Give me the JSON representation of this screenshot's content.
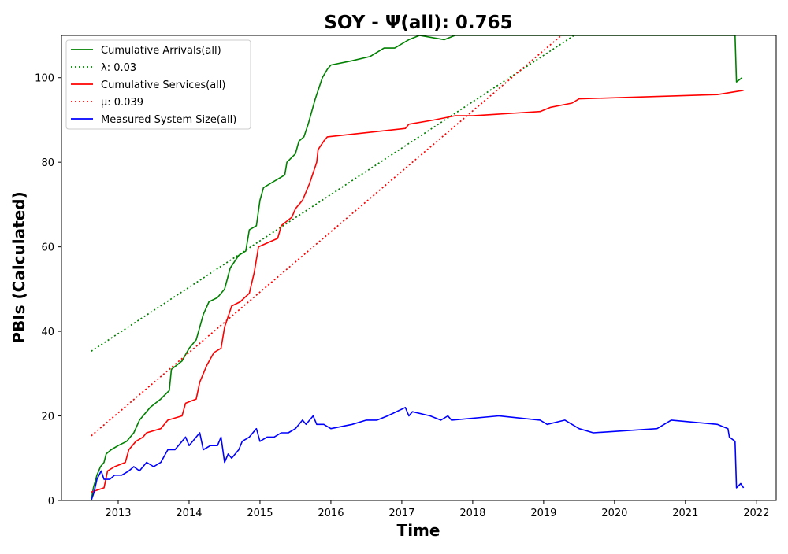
{
  "chart_data": {
    "type": "line",
    "title": "SOY -  Ψ(all): 0.765",
    "xlabel": "Time",
    "ylabel": "PBIs (Calculated)",
    "xlim": [
      2012.2,
      2022.28
    ],
    "ylim": [
      0,
      110
    ],
    "x_ticks": [
      2013,
      2014,
      2015,
      2016,
      2017,
      2018,
      2019,
      2020,
      2021,
      2022
    ],
    "x_tick_labels": [
      "2013",
      "2014",
      "2015",
      "2016",
      "2017",
      "2018",
      "2019",
      "2020",
      "2021",
      "2022"
    ],
    "y_ticks": [
      0,
      20,
      40,
      60,
      80,
      100
    ],
    "y_tick_labels": [
      "0",
      "20",
      "40",
      "60",
      "80",
      "100"
    ],
    "grid": false,
    "legend_position": "top-left",
    "series": [
      {
        "name": "Cumulative Arrivals(all)",
        "color": "#008000",
        "style": "solid",
        "points": [
          [
            2012.62,
            0
          ],
          [
            2012.65,
            3
          ],
          [
            2012.7,
            6
          ],
          [
            2012.75,
            8
          ],
          [
            2012.8,
            9
          ],
          [
            2012.83,
            11
          ],
          [
            2012.9,
            12
          ],
          [
            2013.0,
            13
          ],
          [
            2013.12,
            14
          ],
          [
            2013.22,
            16
          ],
          [
            2013.3,
            19
          ],
          [
            2013.45,
            22
          ],
          [
            2013.6,
            24
          ],
          [
            2013.72,
            26
          ],
          [
            2013.75,
            31
          ],
          [
            2013.9,
            33
          ],
          [
            2014.0,
            36
          ],
          [
            2014.1,
            38
          ],
          [
            2014.2,
            44
          ],
          [
            2014.28,
            47
          ],
          [
            2014.4,
            48
          ],
          [
            2014.5,
            50
          ],
          [
            2014.58,
            55
          ],
          [
            2014.7,
            58
          ],
          [
            2014.8,
            59
          ],
          [
            2014.85,
            64
          ],
          [
            2014.95,
            65
          ],
          [
            2015.0,
            71
          ],
          [
            2015.05,
            74
          ],
          [
            2015.15,
            75
          ],
          [
            2015.25,
            76
          ],
          [
            2015.35,
            77
          ],
          [
            2015.38,
            80
          ],
          [
            2015.5,
            82
          ],
          [
            2015.55,
            85
          ],
          [
            2015.62,
            86
          ],
          [
            2015.68,
            89
          ],
          [
            2015.78,
            95
          ],
          [
            2015.88,
            100
          ],
          [
            2015.95,
            102
          ],
          [
            2016.0,
            103
          ],
          [
            2016.3,
            104
          ],
          [
            2016.55,
            105
          ],
          [
            2016.75,
            107
          ],
          [
            2016.9,
            107
          ],
          [
            2017.1,
            109
          ],
          [
            2017.25,
            110
          ],
          [
            2017.6,
            109
          ],
          [
            2017.75,
            110
          ],
          [
            2021.7,
            110
          ],
          [
            2021.72,
            99
          ],
          [
            2021.8,
            100
          ]
        ]
      },
      {
        "name": "λ: 0.03",
        "color": "#008000",
        "style": "dotted",
        "points": [
          [
            2012.62,
            35.3
          ],
          [
            2019.43,
            110
          ]
        ]
      },
      {
        "name": "Cumulative Services(all)",
        "color": "#ff0000",
        "style": "solid",
        "points": [
          [
            2012.62,
            2
          ],
          [
            2012.8,
            3
          ],
          [
            2012.85,
            7
          ],
          [
            2012.95,
            8
          ],
          [
            2013.1,
            9
          ],
          [
            2013.15,
            12
          ],
          [
            2013.25,
            14
          ],
          [
            2013.35,
            15
          ],
          [
            2013.4,
            16
          ],
          [
            2013.6,
            17
          ],
          [
            2013.7,
            19
          ],
          [
            2013.9,
            20
          ],
          [
            2013.95,
            23
          ],
          [
            2014.1,
            24
          ],
          [
            2014.15,
            28
          ],
          [
            2014.25,
            32
          ],
          [
            2014.35,
            35
          ],
          [
            2014.45,
            36
          ],
          [
            2014.5,
            41
          ],
          [
            2014.6,
            46
          ],
          [
            2014.72,
            47
          ],
          [
            2014.85,
            49
          ],
          [
            2014.92,
            54
          ],
          [
            2014.98,
            60
          ],
          [
            2015.25,
            62
          ],
          [
            2015.3,
            65
          ],
          [
            2015.45,
            67
          ],
          [
            2015.5,
            69
          ],
          [
            2015.6,
            71
          ],
          [
            2015.7,
            75
          ],
          [
            2015.8,
            80
          ],
          [
            2015.82,
            83
          ],
          [
            2015.9,
            85
          ],
          [
            2015.95,
            86
          ],
          [
            2017.05,
            88
          ],
          [
            2017.1,
            89
          ],
          [
            2017.45,
            90
          ],
          [
            2017.75,
            91
          ],
          [
            2018.0,
            91
          ],
          [
            2018.95,
            92
          ],
          [
            2019.1,
            93
          ],
          [
            2019.4,
            94
          ],
          [
            2019.5,
            95
          ],
          [
            2021.45,
            96
          ],
          [
            2021.82,
            97
          ]
        ]
      },
      {
        "name": "μ: 0.039",
        "color": "#ff0000",
        "style": "dotted",
        "points": [
          [
            2012.62,
            15.3
          ],
          [
            2019.25,
            110
          ]
        ]
      },
      {
        "name": "Measured System Size(all)",
        "color": "#0000ff",
        "style": "solid",
        "points": [
          [
            2012.62,
            0
          ],
          [
            2012.66,
            2
          ],
          [
            2012.7,
            5
          ],
          [
            2012.76,
            7
          ],
          [
            2012.8,
            5
          ],
          [
            2012.88,
            5
          ],
          [
            2012.95,
            6
          ],
          [
            2013.05,
            6
          ],
          [
            2013.15,
            7
          ],
          [
            2013.22,
            8
          ],
          [
            2013.3,
            7
          ],
          [
            2013.4,
            9
          ],
          [
            2013.5,
            8
          ],
          [
            2013.6,
            9
          ],
          [
            2013.7,
            12
          ],
          [
            2013.8,
            12
          ],
          [
            2013.9,
            14
          ],
          [
            2013.95,
            15
          ],
          [
            2014.0,
            13
          ],
          [
            2014.1,
            15
          ],
          [
            2014.15,
            16
          ],
          [
            2014.2,
            12
          ],
          [
            2014.3,
            13
          ],
          [
            2014.4,
            13
          ],
          [
            2014.45,
            15
          ],
          [
            2014.5,
            9
          ],
          [
            2014.55,
            11
          ],
          [
            2014.6,
            10
          ],
          [
            2014.7,
            12
          ],
          [
            2014.75,
            14
          ],
          [
            2014.85,
            15
          ],
          [
            2014.9,
            16
          ],
          [
            2014.95,
            17
          ],
          [
            2015.0,
            14
          ],
          [
            2015.1,
            15
          ],
          [
            2015.2,
            15
          ],
          [
            2015.3,
            16
          ],
          [
            2015.4,
            16
          ],
          [
            2015.5,
            17
          ],
          [
            2015.6,
            19
          ],
          [
            2015.65,
            18
          ],
          [
            2015.75,
            20
          ],
          [
            2015.8,
            18
          ],
          [
            2015.9,
            18
          ],
          [
            2016.0,
            17
          ],
          [
            2016.3,
            18
          ],
          [
            2016.5,
            19
          ],
          [
            2016.65,
            19
          ],
          [
            2016.8,
            20
          ],
          [
            2017.05,
            22
          ],
          [
            2017.1,
            20
          ],
          [
            2017.15,
            21
          ],
          [
            2017.4,
            20
          ],
          [
            2017.55,
            19
          ],
          [
            2017.65,
            20
          ],
          [
            2017.7,
            19
          ],
          [
            2018.37,
            20
          ],
          [
            2018.95,
            19
          ],
          [
            2019.05,
            18
          ],
          [
            2019.3,
            19
          ],
          [
            2019.5,
            17
          ],
          [
            2019.7,
            16
          ],
          [
            2020.6,
            17
          ],
          [
            2020.8,
            19
          ],
          [
            2021.45,
            18
          ],
          [
            2021.6,
            17
          ],
          [
            2021.62,
            15
          ],
          [
            2021.7,
            14
          ],
          [
            2021.72,
            3
          ],
          [
            2021.78,
            4
          ],
          [
            2021.82,
            3
          ]
        ]
      }
    ]
  }
}
